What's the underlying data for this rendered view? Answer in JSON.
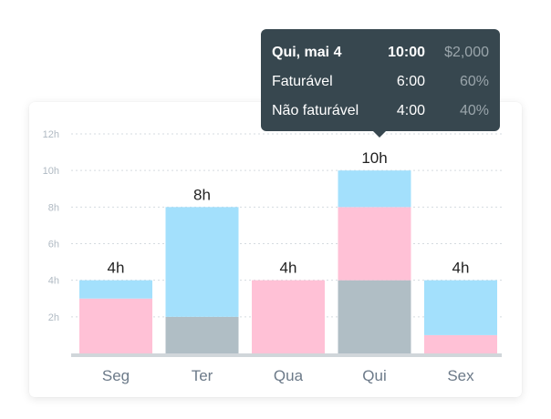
{
  "chart_data": {
    "type": "bar",
    "stacked": true,
    "categories": [
      "Seg",
      "Ter",
      "Qua",
      "Qui",
      "Sex"
    ],
    "totals_labels": [
      "4h",
      "8h",
      "4h",
      "10h",
      "4h"
    ],
    "y_ticks": [
      "2h",
      "4h",
      "6h",
      "8h",
      "10h",
      "12h"
    ],
    "ylim": [
      0,
      12
    ],
    "grid": true,
    "series": [
      {
        "color": "#b0bec5",
        "values": [
          0,
          2,
          0,
          4,
          0
        ]
      },
      {
        "color": "#ffc1d6",
        "values": [
          3,
          0,
          4,
          4,
          1
        ]
      },
      {
        "color": "#a3e0fc",
        "values": [
          1,
          6,
          0,
          2,
          3
        ]
      }
    ]
  },
  "tooltip": {
    "header": {
      "label": "Qui, mai 4",
      "time": "10:00",
      "amount": "$2,000"
    },
    "rows": [
      {
        "label": "Faturável",
        "time": "6:00",
        "amount": "60%"
      },
      {
        "label": "Não faturável",
        "time": "4:00",
        "amount": "40%"
      }
    ]
  },
  "colors": {
    "axis_text": "#6c7a89",
    "tick_text": "#b0bac3",
    "gridline": "#d5dbe0",
    "baseline": "#d0d6da",
    "tooltip_bg": "#37474f"
  }
}
